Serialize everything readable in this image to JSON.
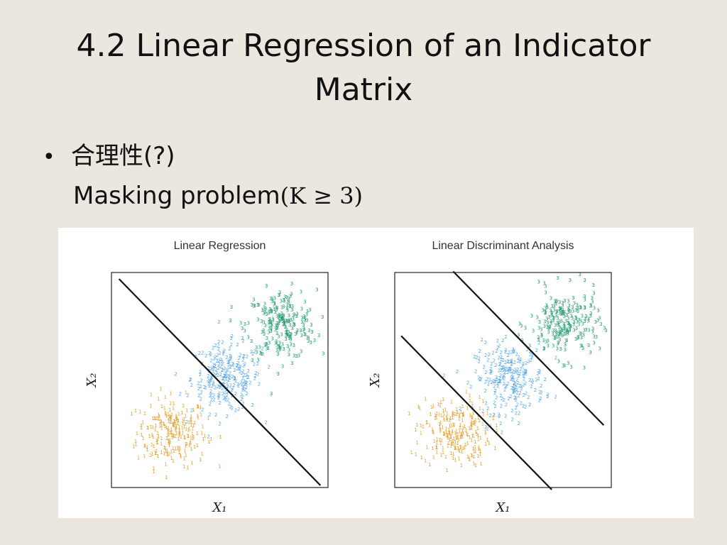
{
  "slide": {
    "title": "4.2 Linear Regression of an Indicator Matrix",
    "bullet": {
      "text": "合理性(?)",
      "symbol": "•"
    },
    "subline": {
      "text": "Masking problem",
      "math": "(K ≥ 3)"
    }
  },
  "colors": {
    "background": "#ebe7df",
    "class1": "#e3a130",
    "class2": "#5aa9e6",
    "class3": "#1f9a6e",
    "line": "#111111"
  },
  "chart_data": [
    {
      "type": "scatter",
      "title": "Linear Regression",
      "xlabel": "X₁",
      "ylabel": "X₂",
      "marker_labels": [
        "1",
        "2",
        "3"
      ],
      "series": [
        {
          "name": "1",
          "center": [
            -1.0,
            -1.0
          ]
        },
        {
          "name": "2",
          "center": [
            0.0,
            0.0
          ]
        },
        {
          "name": "3",
          "center": [
            1.0,
            1.0
          ]
        }
      ],
      "decision_boundaries": 1
    },
    {
      "type": "scatter",
      "title": "Linear Discriminant Analysis",
      "xlabel": "X₁",
      "ylabel": "X₂",
      "marker_labels": [
        "1",
        "2",
        "3"
      ],
      "series": [
        {
          "name": "1",
          "center": [
            -1.0,
            -1.0
          ]
        },
        {
          "name": "2",
          "center": [
            0.0,
            0.0
          ]
        },
        {
          "name": "3",
          "center": [
            1.0,
            1.0
          ]
        }
      ],
      "decision_boundaries": 2
    }
  ]
}
